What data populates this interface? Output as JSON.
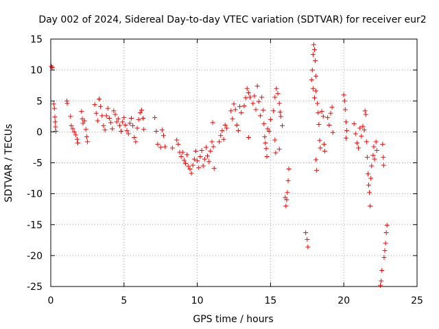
{
  "chart_data": {
    "type": "scatter",
    "title": "Day 002 of 2024, Sidereal Day-to-day VTEC variation (SDTVAR) for receiver eur2",
    "xlabel": "GPS time / hours",
    "ylabel": "SDTVAR / TECUs",
    "xlim": [
      0,
      25
    ],
    "ylim": [
      -25,
      15
    ],
    "xticks": [
      "0",
      "5",
      "10",
      "15",
      "20",
      "25"
    ],
    "yticks": [
      "15",
      "10",
      "5",
      "0",
      "-5",
      "-10",
      "-15",
      "-20",
      "-25"
    ],
    "grid": true,
    "marker": "+",
    "color": "#ff0000",
    "series": [
      {
        "name": "SDTVAR",
        "points": [
          [
            0.05,
            10.6
          ],
          [
            0.1,
            10.4
          ],
          [
            0.2,
            4.5
          ],
          [
            0.25,
            3.8
          ],
          [
            0.28,
            2.4
          ],
          [
            0.3,
            1.6
          ],
          [
            0.32,
            0.8
          ],
          [
            0.35,
            0.1
          ],
          [
            1.1,
            5.0
          ],
          [
            1.12,
            4.6
          ],
          [
            1.35,
            2.5
          ],
          [
            1.4,
            1.0
          ],
          [
            1.5,
            0.5
          ],
          [
            1.6,
            0.0
          ],
          [
            1.7,
            -0.5
          ],
          [
            1.8,
            -1.2
          ],
          [
            1.85,
            -1.8
          ],
          [
            2.1,
            3.3
          ],
          [
            2.15,
            2.1
          ],
          [
            2.2,
            1.4
          ],
          [
            2.3,
            1.8
          ],
          [
            2.4,
            0.4
          ],
          [
            2.45,
            -0.8
          ],
          [
            2.5,
            -1.6
          ],
          [
            3.0,
            4.4
          ],
          [
            3.1,
            3.0
          ],
          [
            3.2,
            1.8
          ],
          [
            3.3,
            5.3
          ],
          [
            3.4,
            4.1
          ],
          [
            3.5,
            2.6
          ],
          [
            3.6,
            1.0
          ],
          [
            3.7,
            0.3
          ],
          [
            3.8,
            2.6
          ],
          [
            3.9,
            3.8
          ],
          [
            4.0,
            2.2
          ],
          [
            4.1,
            1.5
          ],
          [
            4.2,
            0.5
          ],
          [
            4.3,
            3.4
          ],
          [
            4.4,
            2.8
          ],
          [
            4.5,
            1.6
          ],
          [
            4.6,
            2.1
          ],
          [
            4.7,
            1.0
          ],
          [
            4.8,
            0.1
          ],
          [
            4.9,
            1.6
          ],
          [
            5.0,
            2.3
          ],
          [
            5.1,
            1.1
          ],
          [
            5.2,
            0.2
          ],
          [
            5.3,
            -0.3
          ],
          [
            5.4,
            1.4
          ],
          [
            5.5,
            2.2
          ],
          [
            5.6,
            1.0
          ],
          [
            5.7,
            -0.9
          ],
          [
            5.8,
            -1.6
          ],
          [
            5.9,
            0.6
          ],
          [
            6.0,
            2.0
          ],
          [
            6.1,
            3.1
          ],
          [
            6.2,
            3.5
          ],
          [
            6.3,
            2.2
          ],
          [
            6.35,
            0.4
          ],
          [
            7.1,
            2.3
          ],
          [
            7.2,
            0.1
          ],
          [
            7.3,
            -2.0
          ],
          [
            7.5,
            -2.5
          ],
          [
            7.6,
            0.3
          ],
          [
            7.7,
            -0.6
          ],
          [
            7.8,
            -2.4
          ],
          [
            8.3,
            -2.6
          ],
          [
            8.6,
            -1.3
          ],
          [
            8.7,
            -2.0
          ],
          [
            8.8,
            -3.3
          ],
          [
            8.9,
            -4.0
          ],
          [
            9.0,
            -3.3
          ],
          [
            9.1,
            -4.6
          ],
          [
            9.2,
            -5.1
          ],
          [
            9.3,
            -3.7
          ],
          [
            9.4,
            -5.6
          ],
          [
            9.5,
            -6.0
          ],
          [
            9.6,
            -6.7
          ],
          [
            9.7,
            -5.4
          ],
          [
            9.8,
            -4.4
          ],
          [
            9.9,
            -3.1
          ],
          [
            10.0,
            -4.7
          ],
          [
            10.1,
            -5.8
          ],
          [
            10.2,
            -4.0
          ],
          [
            10.3,
            -3.0
          ],
          [
            10.4,
            -5.5
          ],
          [
            10.5,
            -4.4
          ],
          [
            10.6,
            -2.5
          ],
          [
            10.7,
            -3.9
          ],
          [
            10.8,
            -4.8
          ],
          [
            10.9,
            -3.1
          ],
          [
            11.0,
            -1.6
          ],
          [
            11.05,
            1.5
          ],
          [
            11.1,
            -2.4
          ],
          [
            11.15,
            -5.9
          ],
          [
            11.5,
            -1.6
          ],
          [
            11.6,
            -0.6
          ],
          [
            11.7,
            0.2
          ],
          [
            11.8,
            -1.2
          ],
          [
            11.9,
            1.1
          ],
          [
            12.0,
            0.6
          ],
          [
            12.3,
            3.4
          ],
          [
            12.4,
            2.1
          ],
          [
            12.5,
            4.5
          ],
          [
            12.6,
            3.6
          ],
          [
            12.7,
            1.1
          ],
          [
            12.8,
            0.2
          ],
          [
            12.9,
            4.1
          ],
          [
            13.0,
            3.1
          ],
          [
            13.2,
            4.2
          ],
          [
            13.3,
            5.5
          ],
          [
            13.4,
            7.0
          ],
          [
            13.5,
            6.3
          ],
          [
            13.6,
            5.6
          ],
          [
            13.5,
            -0.9
          ],
          [
            13.8,
            4.6
          ],
          [
            13.9,
            5.8
          ],
          [
            14.0,
            3.6
          ],
          [
            14.1,
            7.4
          ],
          [
            14.2,
            4.9
          ],
          [
            14.3,
            2.6
          ],
          [
            14.4,
            5.6
          ],
          [
            14.5,
            3.5
          ],
          [
            14.55,
            1.3
          ],
          [
            14.6,
            -0.8
          ],
          [
            14.65,
            -1.8
          ],
          [
            14.7,
            -2.7
          ],
          [
            14.75,
            -4.0
          ],
          [
            14.8,
            0.5
          ],
          [
            14.9,
            0.1
          ],
          [
            15.0,
            2.0
          ],
          [
            15.2,
            3.4
          ],
          [
            15.3,
            5.6
          ],
          [
            15.4,
            7.0
          ],
          [
            15.5,
            6.2
          ],
          [
            15.6,
            4.6
          ],
          [
            15.65,
            3.2
          ],
          [
            15.3,
            -1.3
          ],
          [
            15.35,
            -3.4
          ],
          [
            15.6,
            -2.8
          ],
          [
            15.7,
            2.5
          ],
          [
            15.8,
            1.0
          ],
          [
            16.0,
            -10.6
          ],
          [
            16.05,
            -12.0
          ],
          [
            16.1,
            -11.0
          ],
          [
            16.15,
            -9.8
          ],
          [
            16.2,
            -7.9
          ],
          [
            16.25,
            -6.0
          ],
          [
            17.4,
            -16.3
          ],
          [
            17.5,
            -17.4
          ],
          [
            17.55,
            -18.6
          ],
          [
            17.8,
            8.4
          ],
          [
            17.85,
            10.0
          ],
          [
            17.9,
            12.5
          ],
          [
            17.95,
            14.1
          ],
          [
            18.0,
            13.3
          ],
          [
            18.05,
            11.5
          ],
          [
            18.1,
            9.0
          ],
          [
            17.9,
            7.0
          ],
          [
            18.0,
            5.5
          ],
          [
            18.1,
            6.6
          ],
          [
            18.2,
            4.6
          ],
          [
            18.25,
            3.1
          ],
          [
            18.3,
            1.2
          ],
          [
            18.35,
            -1.4
          ],
          [
            18.4,
            -2.6
          ],
          [
            18.1,
            -4.5
          ],
          [
            18.15,
            -6.2
          ],
          [
            18.5,
            3.3
          ],
          [
            18.6,
            2.5
          ],
          [
            18.65,
            -2.0
          ],
          [
            18.7,
            -3.1
          ],
          [
            18.9,
            2.3
          ],
          [
            19.0,
            1.1
          ],
          [
            19.1,
            3.0
          ],
          [
            19.2,
            4.0
          ],
          [
            19.25,
            -0.1
          ],
          [
            20.0,
            6.0
          ],
          [
            20.05,
            5.0
          ],
          [
            20.1,
            3.6
          ],
          [
            20.15,
            1.6
          ],
          [
            20.2,
            0.2
          ],
          [
            20.15,
            -1.0
          ],
          [
            20.7,
            1.3
          ],
          [
            20.8,
            -0.3
          ],
          [
            20.9,
            -1.8
          ],
          [
            21.0,
            -2.6
          ],
          [
            21.1,
            0.6
          ],
          [
            21.2,
            -0.7
          ],
          [
            21.3,
            0.9
          ],
          [
            21.4,
            0.3
          ],
          [
            21.45,
            3.4
          ],
          [
            21.5,
            2.8
          ],
          [
            21.55,
            -1.6
          ],
          [
            21.6,
            -4.1
          ],
          [
            21.65,
            -6.8
          ],
          [
            21.7,
            -8.6
          ],
          [
            21.75,
            -9.8
          ],
          [
            21.8,
            -12.0
          ],
          [
            21.85,
            -7.5
          ],
          [
            21.9,
            -5.5
          ],
          [
            22.0,
            -3.8
          ],
          [
            22.05,
            -2.4
          ],
          [
            22.1,
            -4.4
          ],
          [
            22.2,
            -1.6
          ],
          [
            22.25,
            -3.0
          ],
          [
            22.5,
            -24.8
          ],
          [
            22.55,
            -24.1
          ],
          [
            22.6,
            -22.4
          ],
          [
            22.65,
            -2.0
          ],
          [
            22.7,
            -4.1
          ],
          [
            22.72,
            -5.4
          ],
          [
            22.75,
            -20.3
          ],
          [
            22.8,
            -19.2
          ],
          [
            22.85,
            -18.0
          ],
          [
            22.9,
            -16.3
          ],
          [
            22.95,
            -15.1
          ]
        ]
      }
    ]
  }
}
